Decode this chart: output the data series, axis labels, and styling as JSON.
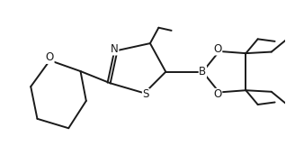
{
  "bg_color": "#ffffff",
  "line_color": "#1a1a1a",
  "line_width": 1.4,
  "font_size": 8.5,
  "fig_width": 3.18,
  "fig_height": 1.72,
  "dpi": 100,
  "xlim": [
    0.0,
    10.0
  ],
  "ylim": [
    0.0,
    5.4
  ]
}
